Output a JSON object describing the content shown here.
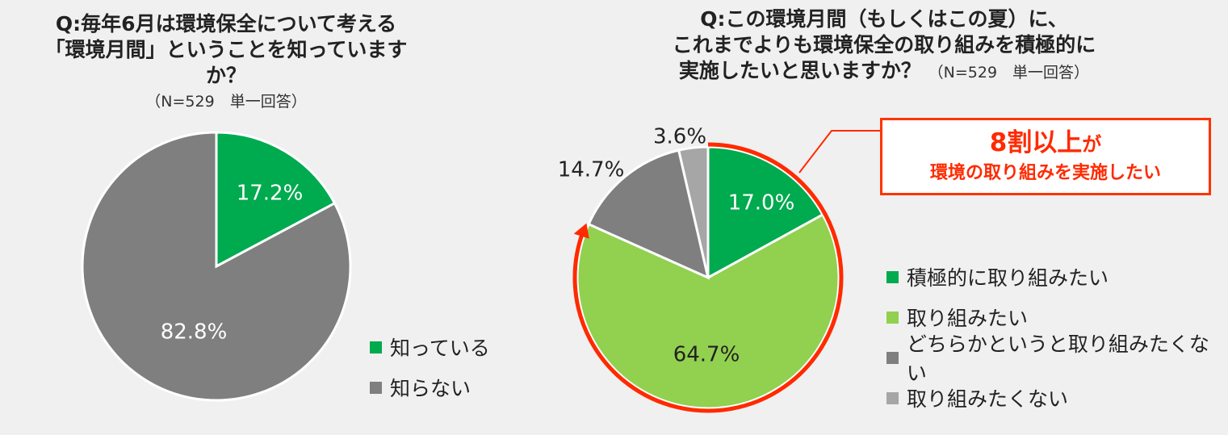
{
  "chart_data": [
    {
      "type": "pie",
      "title_line1": "Q:毎年6月は環境保全について考える",
      "title_line2": "「環境月間」ということを知っていますか？",
      "note": "（N=529　単一回答）",
      "categories": [
        "知っている",
        "知らない"
      ],
      "values": [
        17.2,
        82.8
      ],
      "labels": [
        "17.2%",
        "82.8%"
      ],
      "colors": [
        "#00aa4f",
        "#7f7f7f"
      ]
    },
    {
      "type": "pie",
      "title_line1": "Q:この環境月間（もしくはこの夏）に、",
      "title_line2": "これまでよりも環境保全の取り組みを積極的に",
      "title_line3": "実施したいと思いますか？",
      "note": "（N=529　単一回答）",
      "categories": [
        "積極的に取り組みたい",
        "取り組みたい",
        "どちらかというと取り組みたくない",
        "取り組みたくない"
      ],
      "values": [
        17.0,
        64.7,
        14.7,
        3.6
      ],
      "labels": [
        "17.0%",
        "64.7%",
        "14.7%",
        "3.6%"
      ],
      "colors": [
        "#00aa4f",
        "#92d050",
        "#7f7f7f",
        "#a6a6a6"
      ]
    }
  ],
  "callout": {
    "big": "8割以上",
    "ga": "が",
    "small": "環境の取り組みを実施したい",
    "color": "#ff2a00"
  }
}
